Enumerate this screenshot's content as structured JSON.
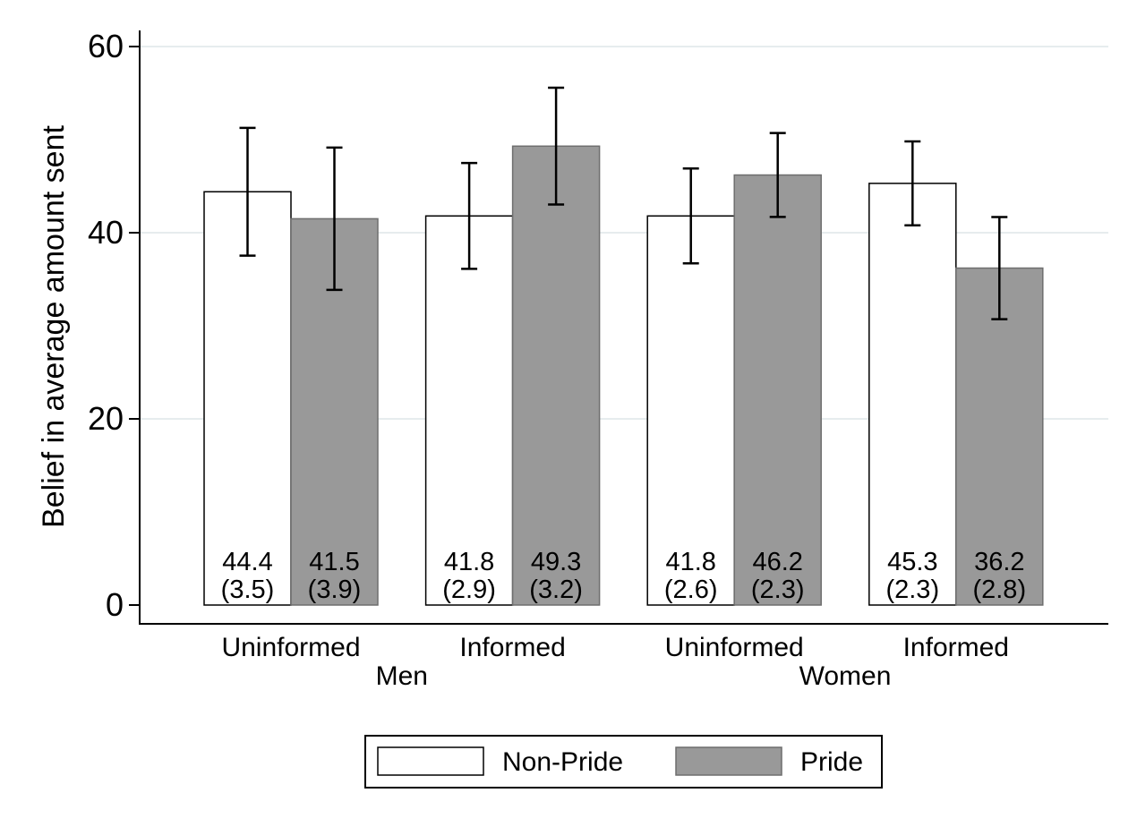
{
  "chart_data": {
    "type": "bar",
    "title": "",
    "xlabel": "",
    "ylabel": "Belief in average amount sent",
    "ylim": [
      0,
      60
    ],
    "yticks": [
      0,
      20,
      40,
      60
    ],
    "grid": true,
    "groups": [
      "Men",
      "Women"
    ],
    "categories": [
      "Uninformed",
      "Informed",
      "Uninformed",
      "Informed"
    ],
    "category_group": [
      "Men",
      "Men",
      "Women",
      "Women"
    ],
    "series": [
      {
        "name": "Non-Pride",
        "color": "#ffffff",
        "values": [
          44.4,
          41.8,
          41.8,
          45.3
        ],
        "se": [
          3.5,
          2.9,
          2.6,
          2.3
        ],
        "value_labels": [
          "44.4",
          "41.8",
          "41.8",
          "45.3"
        ],
        "se_labels": [
          "(3.5)",
          "(2.9)",
          "(2.6)",
          "(2.3)"
        ]
      },
      {
        "name": "Pride",
        "color": "#999999",
        "values": [
          41.5,
          49.3,
          46.2,
          36.2
        ],
        "se": [
          3.9,
          3.2,
          2.3,
          2.8
        ],
        "value_labels": [
          "41.5",
          "49.3",
          "46.2",
          "36.2"
        ],
        "se_labels": [
          "(3.9)",
          "(3.2)",
          "(2.3)",
          "(2.8)"
        ]
      }
    ],
    "legend": {
      "placement": "bottom-center",
      "entries": [
        "Non-Pride",
        "Pride"
      ]
    }
  }
}
